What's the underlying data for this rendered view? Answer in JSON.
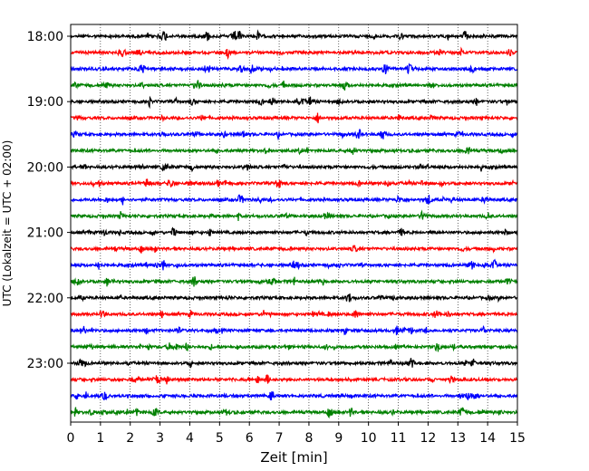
{
  "chart_data": {
    "type": "line",
    "title": "",
    "xlabel": "Zeit  [min]",
    "ylabel": "UTC (Lokalzeit = UTC + 02:00)",
    "xlim": [
      0,
      15
    ],
    "x_ticks": [
      "0",
      "1",
      "2",
      "3",
      "4",
      "5",
      "6",
      "7",
      "8",
      "9",
      "10",
      "11",
      "12",
      "13",
      "14",
      "15"
    ],
    "y_tick_labels": [
      "18:00",
      "19:00",
      "20:00",
      "21:00",
      "22:00",
      "23:00"
    ],
    "y_tick_rows": [
      0,
      4,
      8,
      12,
      16,
      20
    ],
    "row_count": 24,
    "row_interval_minutes": 15,
    "grid": "vertical dotted",
    "series_colors": [
      "#000000",
      "#ff0000",
      "#0000ff",
      "#008000"
    ]
  }
}
